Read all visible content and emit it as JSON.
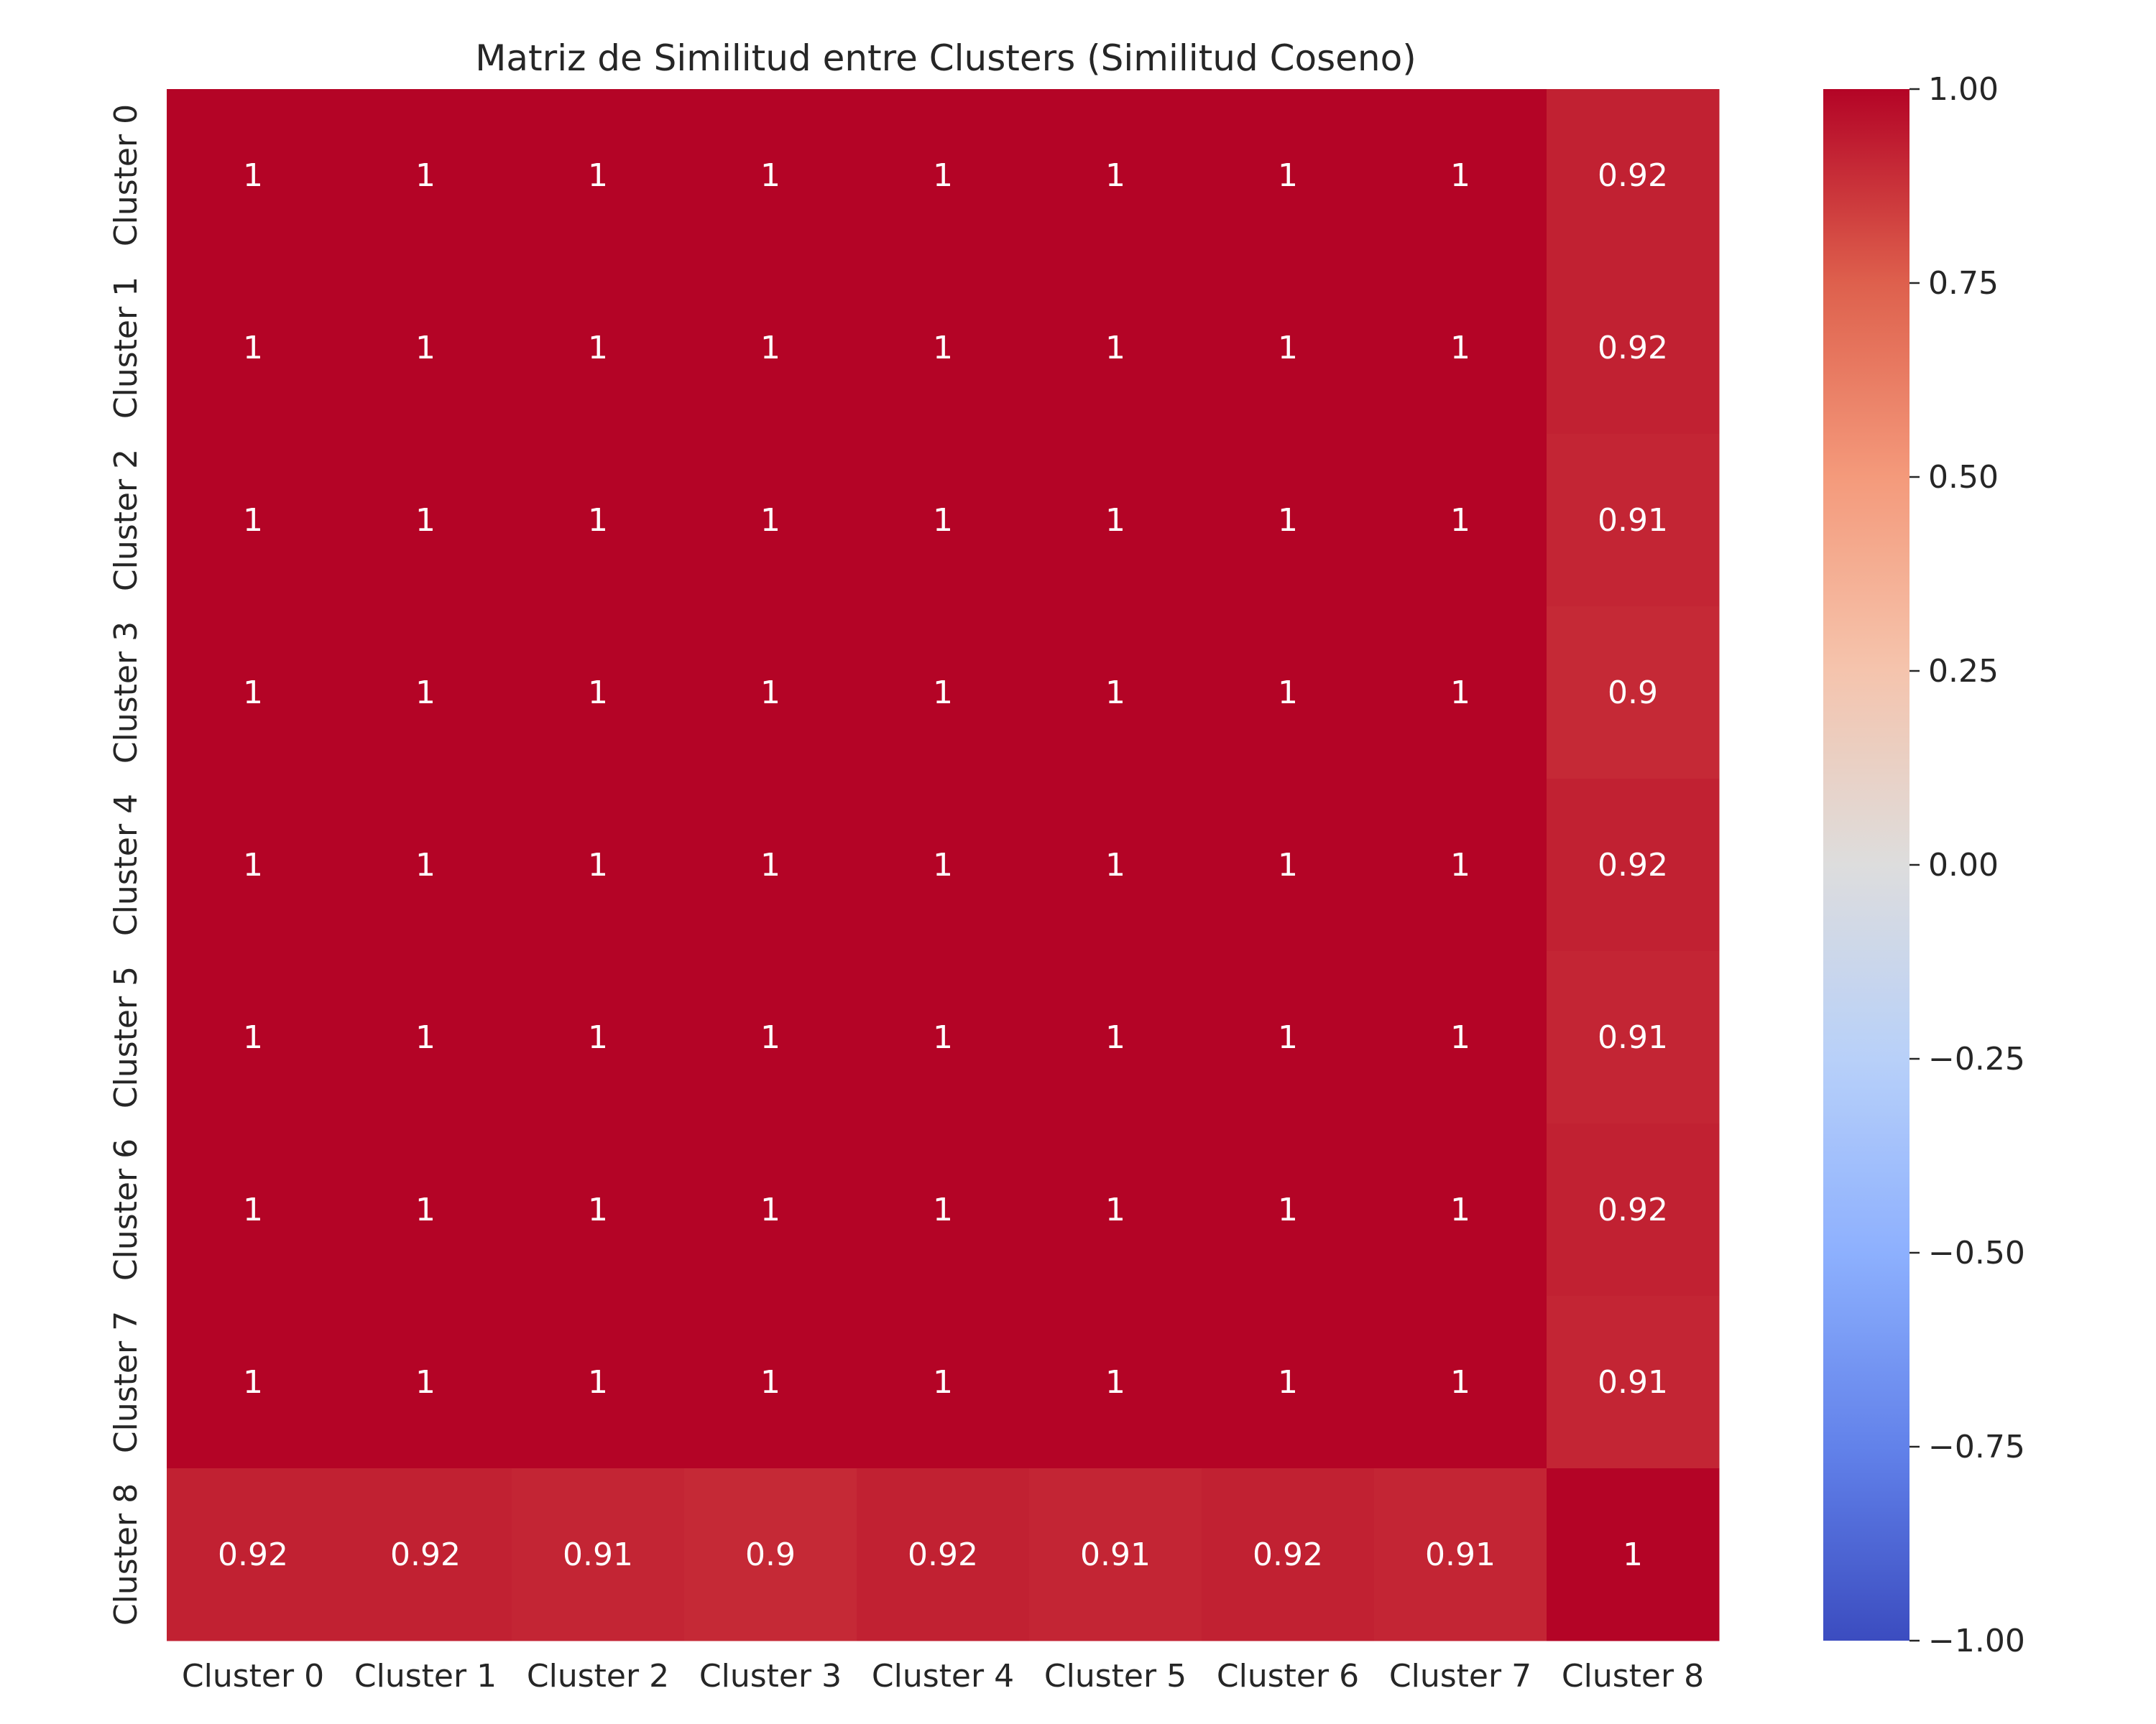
{
  "chart_data": {
    "type": "heatmap",
    "title": "Matriz de Similitud entre Clusters (Similitud Coseno)",
    "xlabel": "",
    "ylabel": "",
    "x_categories": [
      "Cluster 0",
      "Cluster 1",
      "Cluster 2",
      "Cluster 3",
      "Cluster 4",
      "Cluster 5",
      "Cluster 6",
      "Cluster 7",
      "Cluster 8"
    ],
    "y_categories": [
      "Cluster 0",
      "Cluster 1",
      "Cluster 2",
      "Cluster 3",
      "Cluster 4",
      "Cluster 5",
      "Cluster 6",
      "Cluster 7",
      "Cluster 8"
    ],
    "values": [
      [
        1,
        1,
        1,
        1,
        1,
        1,
        1,
        1,
        0.92
      ],
      [
        1,
        1,
        1,
        1,
        1,
        1,
        1,
        1,
        0.92
      ],
      [
        1,
        1,
        1,
        1,
        1,
        1,
        1,
        1,
        0.91
      ],
      [
        1,
        1,
        1,
        1,
        1,
        1,
        1,
        1,
        0.9
      ],
      [
        1,
        1,
        1,
        1,
        1,
        1,
        1,
        1,
        0.92
      ],
      [
        1,
        1,
        1,
        1,
        1,
        1,
        1,
        1,
        0.91
      ],
      [
        1,
        1,
        1,
        1,
        1,
        1,
        1,
        1,
        0.92
      ],
      [
        1,
        1,
        1,
        1,
        1,
        1,
        1,
        1,
        0.91
      ],
      [
        0.92,
        0.92,
        0.91,
        0.9,
        0.92,
        0.91,
        0.92,
        0.91,
        1
      ]
    ],
    "colormap": "coolwarm",
    "colorbar": {
      "range": [
        -1.0,
        1.0
      ],
      "ticks": [
        1.0,
        0.75,
        0.5,
        0.25,
        0.0,
        -0.25,
        -0.5,
        -0.75,
        -1.0
      ],
      "tick_labels": [
        "1.00",
        "0.75",
        "0.50",
        "0.25",
        "0.00",
        "−0.25",
        "−0.50",
        "−0.75",
        "−1.00"
      ]
    },
    "grid": false,
    "annotations": true
  }
}
